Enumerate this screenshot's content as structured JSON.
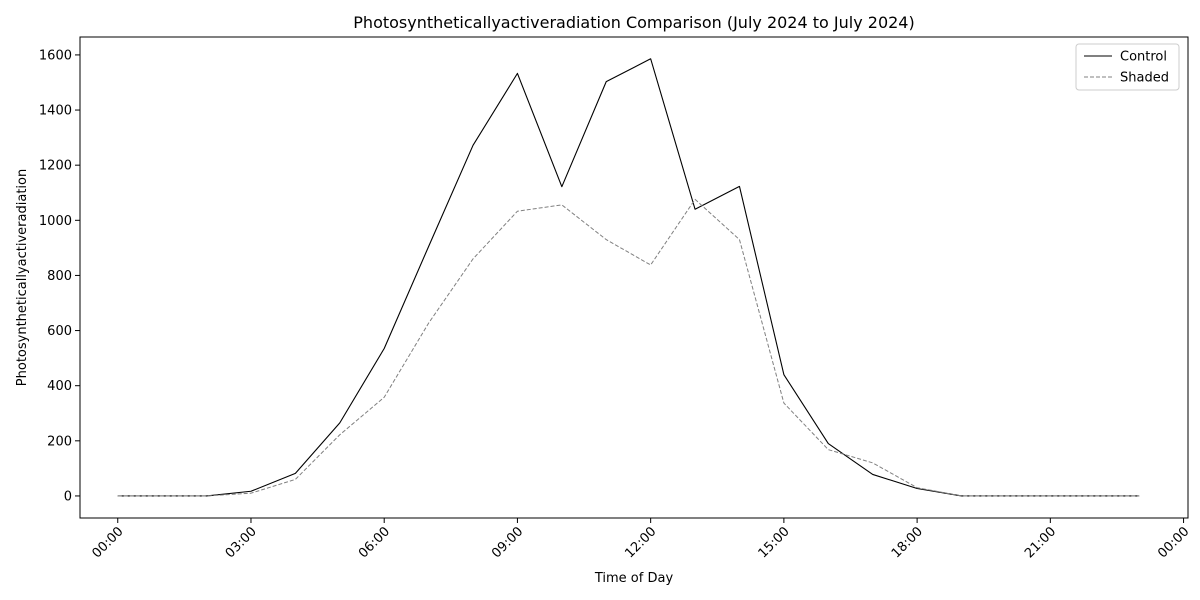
{
  "chart_data": {
    "type": "line",
    "title": "Photosyntheticallyactiveradiation Comparison (July 2024 to July 2024)",
    "xlabel": "Time of Day",
    "ylabel": "Photosyntheticallyactiveradiation",
    "x": [
      "00:00",
      "01:00",
      "02:00",
      "03:00",
      "04:00",
      "05:00",
      "06:00",
      "07:00",
      "08:00",
      "09:00",
      "10:00",
      "11:00",
      "12:00",
      "13:00",
      "14:00",
      "15:00",
      "16:00",
      "17:00",
      "18:00",
      "19:00",
      "20:00",
      "21:00",
      "22:00",
      "23:00"
    ],
    "x_ticks": [
      "00:00",
      "03:00",
      "06:00",
      "09:00",
      "12:00",
      "15:00",
      "18:00",
      "21:00",
      "00:00"
    ],
    "y_ticks": [
      0,
      200,
      400,
      600,
      800,
      1000,
      1200,
      1400,
      1600
    ],
    "ylim": [
      -80,
      1665
    ],
    "grid": false,
    "legend_position": "top-right",
    "series": [
      {
        "name": "Control",
        "color": "#000000",
        "style": "solid",
        "values": [
          0,
          0,
          0,
          17,
          82,
          265,
          535,
          905,
          1272,
          1533,
          1122,
          1503,
          1586,
          1040,
          1123,
          440,
          190,
          78,
          27,
          0,
          0,
          0,
          0,
          0
        ]
      },
      {
        "name": "Shaded",
        "color": "#808080",
        "style": "dashed",
        "values": [
          0,
          0,
          0,
          10,
          60,
          222,
          358,
          627,
          860,
          1033,
          1056,
          930,
          838,
          1076,
          930,
          337,
          168,
          120,
          30,
          0,
          0,
          0,
          0,
          0
        ]
      }
    ]
  }
}
